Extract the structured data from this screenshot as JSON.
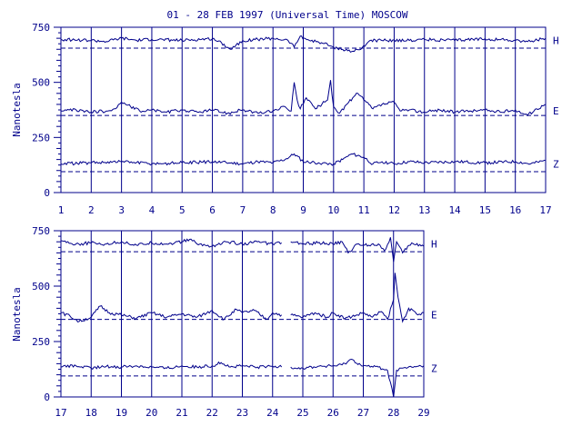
{
  "chart_data": {
    "type": "line",
    "title": "01 - 28 FEB 1997 (Universal Time) MOSCOW",
    "ylabel": "Nanotesla",
    "components": [
      "H",
      "E",
      "Z"
    ],
    "colors": {
      "trace": "#00008b",
      "background": "#ffffff"
    },
    "grid": true,
    "panels": [
      {
        "x_range": [
          1,
          17
        ],
        "x_ticks": [
          "1",
          "2",
          "3",
          "4",
          "5",
          "6",
          "7",
          "8",
          "9",
          "10",
          "11",
          "12",
          "13",
          "14",
          "15",
          "16",
          "17"
        ],
        "ylim": [
          0,
          750
        ],
        "y_ticks": [
          "0",
          "250",
          "500",
          "750"
        ],
        "baselines": [
          {
            "component": "H",
            "value": 655
          },
          {
            "component": "E",
            "value": 350
          },
          {
            "component": "Z",
            "value": 95
          }
        ],
        "series": [
          {
            "name": "H",
            "x": [
              1,
              2,
              2.5,
              3,
              3.5,
              4,
              5,
              6,
              6.3,
              6.6,
              7,
              7.5,
              8,
              8.5,
              8.7,
              8.9,
              9.2,
              9.6,
              10,
              10.3,
              10.6,
              10.9,
              11.2,
              11.6,
              12,
              12.5,
              13,
              14,
              15,
              16,
              16.5,
              17
            ],
            "values": [
              695,
              690,
              685,
              700,
              690,
              695,
              690,
              698,
              680,
              650,
              690,
              695,
              700,
              690,
              660,
              710,
              690,
              680,
              660,
              650,
              640,
              650,
              690,
              690,
              692,
              690,
              695,
              690,
              698,
              690,
              685,
              700
            ]
          },
          {
            "name": "E",
            "x": [
              1,
              1.5,
              2,
              2.5,
              2.8,
              3,
              3.3,
              3.6,
              4,
              4.5,
              5,
              5.5,
              6,
              6.5,
              7,
              7.5,
              8,
              8.4,
              8.6,
              8.7,
              8.8,
              8.9,
              9.1,
              9.4,
              9.8,
              9.9,
              10,
              10.2,
              10.5,
              10.8,
              11,
              11.3,
              11.6,
              12,
              12.2,
              12.5,
              13,
              13.5,
              14,
              14.5,
              15,
              15.5,
              16,
              16.4,
              16.7,
              17
            ],
            "values": [
              370,
              375,
              365,
              370,
              380,
              410,
              390,
              370,
              375,
              365,
              375,
              365,
              375,
              360,
              375,
              360,
              370,
              390,
              370,
              500,
              420,
              380,
              430,
              380,
              420,
              510,
              390,
              360,
              410,
              450,
              420,
              380,
              400,
              410,
              370,
              375,
              365,
              375,
              365,
              370,
              375,
              365,
              375,
              350,
              380,
              400
            ]
          },
          {
            "name": "Z",
            "x": [
              1,
              2,
              3,
              4,
              5,
              6,
              7,
              7.5,
              8,
              8.4,
              8.7,
              9,
              9.5,
              10,
              10.3,
              10.6,
              11,
              11.3,
              11.6,
              12,
              12.5,
              13,
              14,
              15,
              16,
              16.5,
              17
            ],
            "values": [
              130,
              135,
              140,
              130,
              135,
              140,
              130,
              140,
              135,
              150,
              175,
              140,
              135,
              130,
              150,
              175,
              160,
              130,
              140,
              130,
              140,
              135,
              140,
              135,
              140,
              130,
              145
            ]
          }
        ]
      },
      {
        "x_range": [
          17,
          29
        ],
        "x_ticks": [
          "17",
          "18",
          "19",
          "20",
          "21",
          "22",
          "23",
          "24",
          "25",
          "26",
          "27",
          "28",
          "29"
        ],
        "ylim": [
          0,
          750
        ],
        "y_ticks": [
          "0",
          "250",
          "500",
          "750"
        ],
        "baselines": [
          {
            "component": "H",
            "value": 655
          },
          {
            "component": "E",
            "value": 350
          },
          {
            "component": "Z",
            "value": 95
          }
        ],
        "series": [
          {
            "name": "H",
            "x": [
              17,
              17.5,
              18,
              18.5,
              19,
              19.5,
              20,
              20.5,
              21,
              21.3,
              21.5,
              22,
              22.5,
              23,
              23.5,
              24,
              24.3,
              null,
              24.6,
              25,
              25.5,
              26,
              26.3,
              26.5,
              26.8,
              27,
              27.5,
              27.7,
              27.9,
              28,
              28.1,
              28.3,
              28.6,
              29
            ],
            "values": [
              705,
              690,
              695,
              690,
              700,
              685,
              695,
              690,
              700,
              712,
              690,
              680,
              700,
              690,
              700,
              690,
              695,
              null,
              700,
              690,
              695,
              690,
              700,
              650,
              690,
              685,
              690,
              660,
              720,
              610,
              700,
              650,
              695,
              680
            ]
          },
          {
            "name": "E",
            "x": [
              17,
              17.3,
              17.6,
              18,
              18.3,
              18.6,
              19,
              19.5,
              20,
              20.5,
              21,
              21.5,
              22,
              22.4,
              22.8,
              23,
              23.4,
              23.8,
              24,
              24.3,
              null,
              24.6,
              25,
              25.4,
              25.8,
              26,
              26.4,
              26.8,
              27,
              27.3,
              27.6,
              27.8,
              28,
              28.05,
              28.15,
              28.3,
              28.5,
              28.8,
              29
            ],
            "values": [
              380,
              365,
              340,
              360,
              410,
              380,
              370,
              355,
              380,
              360,
              375,
              360,
              390,
              350,
              395,
              380,
              390,
              350,
              380,
              370,
              null,
              370,
              360,
              380,
              360,
              380,
              355,
              370,
              380,
              360,
              385,
              350,
              440,
              560,
              450,
              340,
              400,
              370,
              380
            ]
          },
          {
            "name": "Z",
            "x": [
              17,
              17.5,
              18,
              18.5,
              19,
              19.5,
              20,
              20.5,
              21,
              21.5,
              22,
              22.3,
              22.6,
              23,
              23.5,
              24,
              24.3,
              null,
              24.6,
              25,
              25.5,
              26,
              26.3,
              26.6,
              27,
              27.5,
              27.8,
              28,
              28.1,
              28.3,
              28.6,
              29
            ],
            "values": [
              135,
              140,
              130,
              138,
              135,
              140,
              135,
              130,
              140,
              135,
              140,
              155,
              135,
              140,
              135,
              138,
              135,
              null,
              135,
              130,
              138,
              140,
              145,
              170,
              140,
              135,
              120,
              0,
              120,
              130,
              135,
              140
            ]
          }
        ]
      }
    ]
  }
}
